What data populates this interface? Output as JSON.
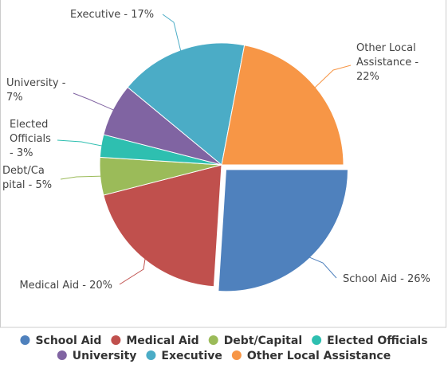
{
  "chart_data": {
    "type": "pie",
    "title": "",
    "series": [
      {
        "name": "School Aid",
        "value": 26,
        "color": "#4f81bd",
        "exploded": true
      },
      {
        "name": "Medical Aid",
        "value": 20,
        "color": "#c0504d",
        "exploded": false
      },
      {
        "name": "Debt/Capital",
        "value": 5,
        "color": "#9bbb59",
        "exploded": false
      },
      {
        "name": "Elected Officials",
        "value": 3,
        "color": "#2ebfb0",
        "exploded": false
      },
      {
        "name": "University",
        "value": 7,
        "color": "#8064a2",
        "exploded": false
      },
      {
        "name": "Executive",
        "value": 17,
        "color": "#4bacc6",
        "exploded": false
      },
      {
        "name": "Other Local Assistance",
        "value": 22,
        "color": "#f79646",
        "exploded": false
      }
    ],
    "callout_lines": [
      [
        "School Aid - 26%"
      ],
      [
        "Medical Aid - 20%"
      ],
      [
        "Debt/Ca",
        "pital - 5%"
      ],
      [
        "Elected",
        "Officials",
        "- 3%"
      ],
      [
        "University -",
        "7%"
      ],
      [
        "Executive - 17%"
      ],
      [
        "Other Local",
        "Assistance -",
        "22%"
      ]
    ],
    "legend_position": "bottom"
  }
}
